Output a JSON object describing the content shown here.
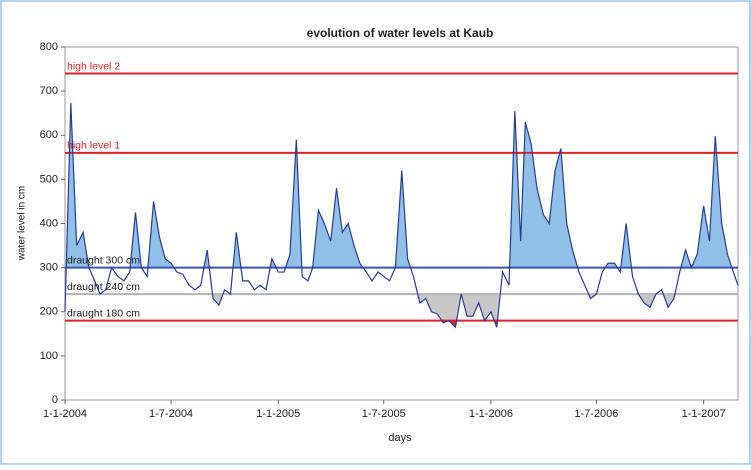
{
  "chart_data": {
    "type": "line",
    "title": "evolution of water levels at Kaub",
    "x_label": "days",
    "y_label": "water level in cm",
    "xlim": [
      "2004-01-01",
      "2007-03-01"
    ],
    "xticks": [
      {
        "value": "2004-01-01",
        "label": "1-1-2004"
      },
      {
        "value": "2004-07-01",
        "label": "1-7-2004"
      },
      {
        "value": "2005-01-01",
        "label": "1-1-2005"
      },
      {
        "value": "2005-07-01",
        "label": "1-7-2005"
      },
      {
        "value": "2006-01-01",
        "label": "1-1-2006"
      },
      {
        "value": "2006-07-01",
        "label": "1-7-2006"
      },
      {
        "value": "2007-01-01",
        "label": "1-1-2007"
      }
    ],
    "ylim": [
      0,
      800
    ],
    "yticks": [
      0,
      100,
      200,
      300,
      400,
      500,
      600,
      700,
      800
    ],
    "x": [
      "2004-01-01",
      "2004-01-11",
      "2004-01-21",
      "2004-02-01",
      "2004-02-11",
      "2004-02-21",
      "2004-03-01",
      "2004-03-11",
      "2004-03-21",
      "2004-04-01",
      "2004-04-11",
      "2004-04-21",
      "2004-05-01",
      "2004-05-11",
      "2004-05-21",
      "2004-06-01",
      "2004-06-11",
      "2004-06-21",
      "2004-07-01",
      "2004-07-11",
      "2004-07-21",
      "2004-08-01",
      "2004-08-11",
      "2004-08-21",
      "2004-09-01",
      "2004-09-11",
      "2004-09-21",
      "2004-10-01",
      "2004-10-11",
      "2004-10-21",
      "2004-11-01",
      "2004-11-11",
      "2004-11-21",
      "2004-12-01",
      "2004-12-11",
      "2004-12-21",
      "2005-01-01",
      "2005-01-11",
      "2005-01-21",
      "2005-02-01",
      "2005-02-11",
      "2005-02-21",
      "2005-03-01",
      "2005-03-11",
      "2005-03-21",
      "2005-04-01",
      "2005-04-11",
      "2005-04-21",
      "2005-05-01",
      "2005-05-11",
      "2005-05-21",
      "2005-06-01",
      "2005-06-11",
      "2005-06-21",
      "2005-07-01",
      "2005-07-11",
      "2005-07-21",
      "2005-08-01",
      "2005-08-11",
      "2005-08-21",
      "2005-09-01",
      "2005-09-11",
      "2005-09-21",
      "2005-10-01",
      "2005-10-11",
      "2005-10-21",
      "2005-11-01",
      "2005-11-11",
      "2005-11-21",
      "2005-12-01",
      "2005-12-11",
      "2005-12-21",
      "2006-01-01",
      "2006-01-11",
      "2006-01-21",
      "2006-02-01",
      "2006-02-11",
      "2006-02-21",
      "2006-03-01",
      "2006-03-11",
      "2006-03-21",
      "2006-04-01",
      "2006-04-11",
      "2006-04-21",
      "2006-05-01",
      "2006-05-11",
      "2006-05-21",
      "2006-06-01",
      "2006-06-11",
      "2006-06-21",
      "2006-07-01",
      "2006-07-11",
      "2006-07-21",
      "2006-08-01",
      "2006-08-11",
      "2006-08-21",
      "2006-09-01",
      "2006-09-11",
      "2006-09-21",
      "2006-10-01",
      "2006-10-11",
      "2006-10-21",
      "2006-11-01",
      "2006-11-11",
      "2006-11-21",
      "2006-12-01",
      "2006-12-11",
      "2006-12-21",
      "2007-01-01",
      "2007-01-11",
      "2007-01-21",
      "2007-02-01",
      "2007-02-11",
      "2007-02-21",
      "2007-03-01"
    ],
    "series": [
      {
        "color": "#283c96",
        "values": [
          200,
          673,
          350,
          380,
          300,
          270,
          240,
          250,
          300,
          280,
          270,
          290,
          425,
          300,
          280,
          450,
          370,
          320,
          310,
          290,
          285,
          260,
          250,
          260,
          340,
          230,
          215,
          250,
          240,
          380,
          270,
          270,
          250,
          260,
          250,
          320,
          290,
          290,
          330,
          590,
          280,
          270,
          300,
          430,
          400,
          360,
          480,
          380,
          400,
          350,
          310,
          290,
          270,
          290,
          280,
          270,
          300,
          520,
          320,
          280,
          220,
          230,
          200,
          195,
          175,
          180,
          165,
          240,
          190,
          190,
          220,
          180,
          200,
          165,
          290,
          260,
          655,
          360,
          630,
          580,
          480,
          420,
          400,
          520,
          570,
          400,
          340,
          290,
          260,
          230,
          240,
          290,
          310,
          310,
          290,
          400,
          280,
          240,
          220,
          210,
          240,
          250,
          210,
          230,
          290,
          340,
          300,
          330,
          440,
          360,
          598,
          400,
          330,
          290,
          260
        ]
      }
    ],
    "levels": [
      {
        "name": "high level 2",
        "value": 740,
        "color": "#e0202a",
        "label_color": "#e0202a"
      },
      {
        "name": "high level 1",
        "value": 560,
        "color": "#e0202a",
        "label_color": "#e0202a"
      },
      {
        "name": "draught 300 cm",
        "value": 300,
        "color": "#3a55b4",
        "label_color": "#222222",
        "fill": "#90bfe8",
        "fill_side": "above"
      },
      {
        "name": "draught 240 cm",
        "value": 240,
        "color": "#b4b4b4",
        "label_color": "#222222",
        "fill": "#c8c8c8",
        "fill_side": "below"
      },
      {
        "name": "draught 180 cm",
        "value": 180,
        "color": "#e0202a",
        "label_color": "#222222",
        "fill": "#e0202a",
        "fill_side": "below"
      }
    ]
  }
}
